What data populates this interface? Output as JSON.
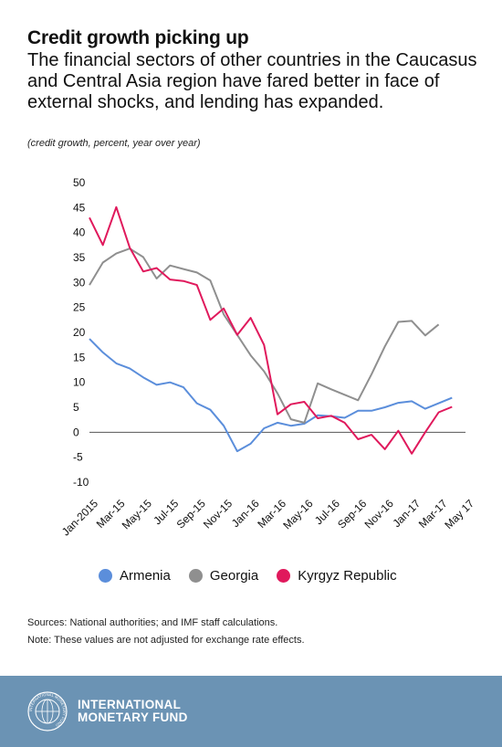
{
  "header": {
    "title": "Credit growth picking up",
    "subtitle": "The financial sectors of other countries in the Caucasus and Central Asia region have fared better in face of external shocks, and lending has expanded.",
    "units": "(credit growth, percent, year over year)"
  },
  "chart_data": {
    "type": "line",
    "title": "Credit growth picking up",
    "xlabel": "",
    "ylabel": "",
    "ylim": [
      -10,
      50
    ],
    "yticks": [
      -10,
      -5,
      0,
      5,
      10,
      15,
      20,
      25,
      30,
      35,
      40,
      45,
      50
    ],
    "ytick_labels": [
      "-10",
      "-5",
      "0",
      "5",
      "10",
      "15",
      "20",
      "25",
      "30",
      "35",
      "40",
      "45",
      "50"
    ],
    "grid": false,
    "legend_position": "bottom",
    "x": [
      "Jan-2015",
      "Feb-15",
      "Mar-15",
      "Apr-15",
      "May-15",
      "Jun-15",
      "Jul-15",
      "Aug-15",
      "Sep-15",
      "Oct-15",
      "Nov-15",
      "Dec-15",
      "Jan-16",
      "Feb-16",
      "Mar-16",
      "Apr-16",
      "May-16",
      "Jun-16",
      "Jul-16",
      "Aug-16",
      "Sep-16",
      "Oct-16",
      "Nov-16",
      "Dec-16",
      "Jan-17",
      "Feb-17",
      "Mar-17",
      "Apr-17",
      "May 17"
    ],
    "xtick_labels": [
      "Jan-2015",
      "Mar-15",
      "May-15",
      "Jul-15",
      "Sep-15",
      "Nov-15",
      "Jan-16",
      "Mar-16",
      "May-16",
      "Jul-16",
      "Sep-16",
      "Nov-16",
      "Jan-17",
      "Mar-17",
      "May 17"
    ],
    "series": [
      {
        "name": "Armenia",
        "color": "#5b8edb",
        "values": [
          18.7,
          16,
          13.8,
          12.8,
          11,
          9.5,
          10,
          9,
          5.8,
          4.5,
          1.3,
          -3.8,
          -2.3,
          0.8,
          1.9,
          1.3,
          1.7,
          3.4,
          3.2,
          2.9,
          4.3,
          4.3,
          5,
          5.9,
          6.2,
          4.7,
          5.8,
          6.9,
          null
        ]
      },
      {
        "name": "Georgia",
        "color": "#8f8f8f",
        "values": [
          29.5,
          34,
          35.8,
          36.8,
          35.1,
          30.8,
          33.4,
          32.7,
          32,
          30.4,
          23.6,
          19.5,
          15.4,
          12.2,
          7.8,
          2.6,
          1.9,
          9.8,
          8.6,
          7.5,
          6.4,
          11.6,
          17.2,
          22.1,
          22.3,
          19.4,
          21.6,
          null,
          null
        ]
      },
      {
        "name": "Kyrgyz Republic",
        "color": "#e0195c",
        "values": [
          43,
          37.5,
          45.1,
          37,
          32.2,
          32.9,
          30.6,
          30.3,
          29.5,
          22.5,
          24.8,
          19.5,
          22.9,
          17.5,
          3.6,
          5.6,
          6.1,
          2.8,
          3.3,
          1.9,
          -1.4,
          -0.5,
          -3.4,
          0.3,
          -4.3,
          0,
          4,
          5.1,
          null
        ]
      }
    ]
  },
  "legend": {
    "items": [
      {
        "label": "Armenia",
        "color": "#5b8edb"
      },
      {
        "label": "Georgia",
        "color": "#8f8f8f"
      },
      {
        "label": "Kyrgyz Republic",
        "color": "#e0195c"
      }
    ]
  },
  "notes": {
    "sources": "Sources: National authorities; and IMF staff calculations.",
    "note": "Note: These values are not adjusted for exchange rate effects."
  },
  "footer": {
    "brand_line1": "INTERNATIONAL",
    "brand_line2": "MONETARY FUND",
    "seal_text": "INTERNATIONAL MONETARY FUND",
    "bg_color": "#6b93b4",
    "seal_icon": "imf-seal-icon"
  }
}
